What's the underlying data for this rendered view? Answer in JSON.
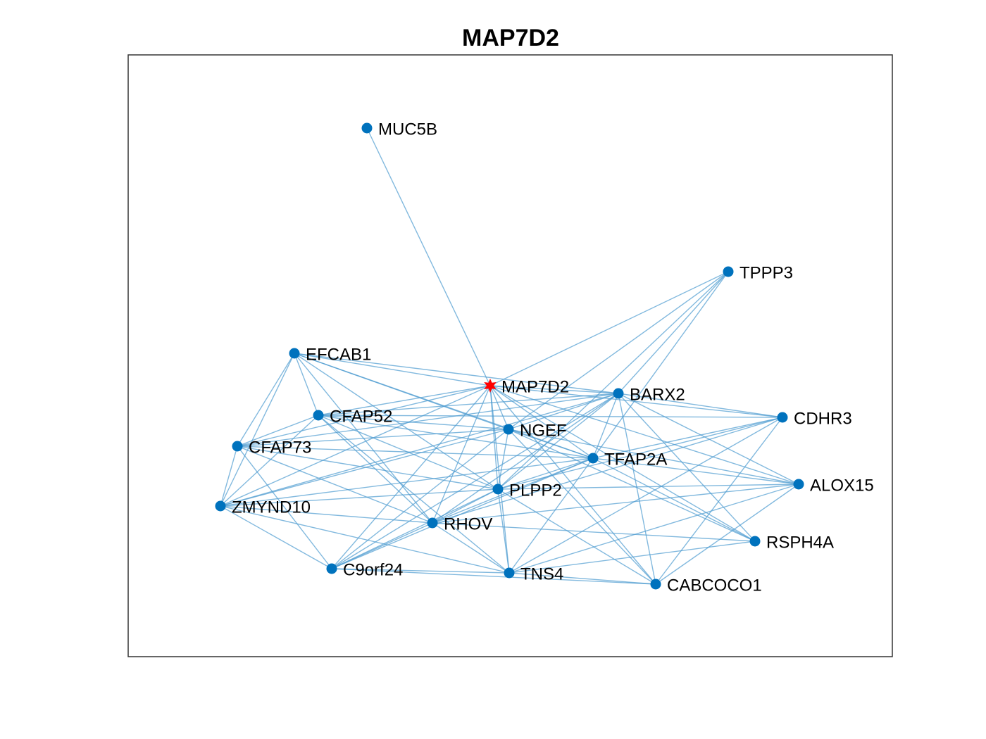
{
  "title": "MAP7D2",
  "nodes": [
    {
      "label": "MAP7D2"
    },
    {
      "label": "MUC5B"
    },
    {
      "label": "TPPP3"
    },
    {
      "label": "EFCAB1"
    },
    {
      "label": "BARX2"
    },
    {
      "label": "CFAP52"
    },
    {
      "label": "NGEF"
    },
    {
      "label": "CDHR3"
    },
    {
      "label": "CFAP73"
    },
    {
      "label": "TFAP2A"
    },
    {
      "label": "ALOX15"
    },
    {
      "label": "PLPP2"
    },
    {
      "label": "ZMYND10"
    },
    {
      "label": "RHOV"
    },
    {
      "label": "RSPH4A"
    },
    {
      "label": "C9orf24"
    },
    {
      "label": "TNS4"
    },
    {
      "label": "CABCOCO1"
    }
  ]
}
